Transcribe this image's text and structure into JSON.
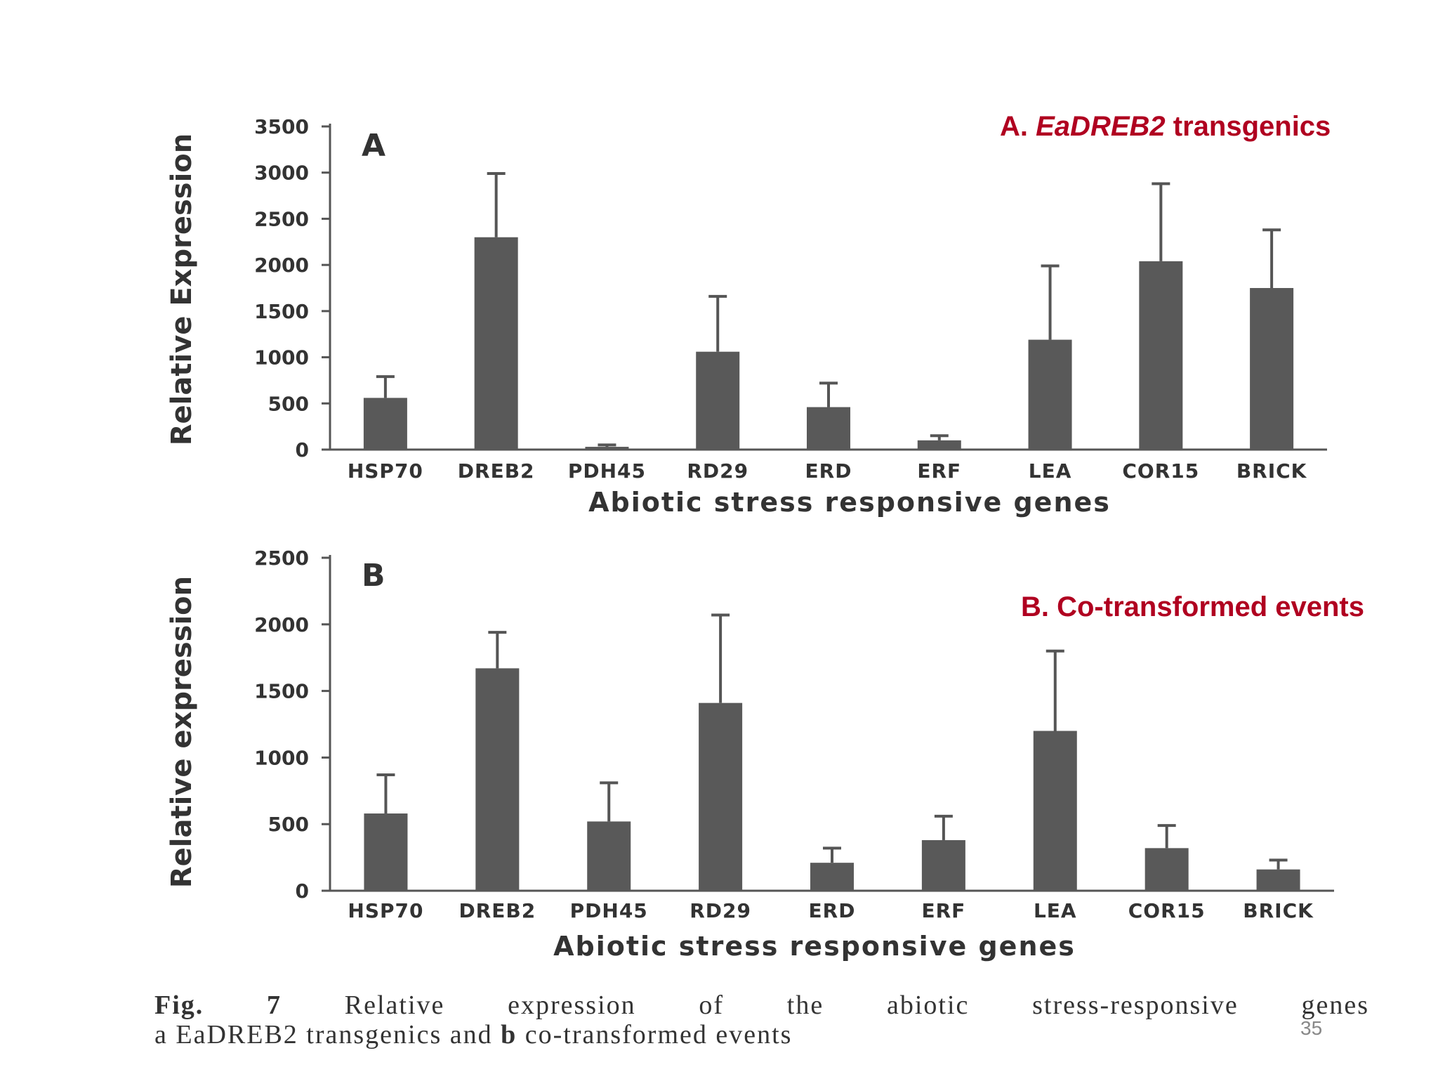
{
  "slide": {
    "page_number": "35"
  },
  "labels": {
    "a_prefix": "A.",
    "a_italic": "EaDREB2",
    "a_suffix": "transgenics",
    "b": "B. Co-transformed events"
  },
  "caption": {
    "fig_label": "Fig. 7",
    "line1_text": "Relative expression of the abiotic stress-responsive genes",
    "line2_a": "a",
    "line2_mid": "EaDREB2 transgenics and",
    "line2_b": "b",
    "line2_end": "co-transformed events"
  },
  "colors": {
    "bar": "#595959",
    "axis": "#555555",
    "text": "#333333",
    "accent": "#b00020"
  },
  "chart_data": [
    {
      "type": "bar",
      "panel_letter": "A",
      "ylabel": "Relative Expression",
      "xlabel": "Abiotic stress responsive genes",
      "categories": [
        "HSP70",
        "DREB2",
        "PDH45",
        "RD29",
        "ERD",
        "ERF",
        "LEA",
        "COR15",
        "BRICK"
      ],
      "values": [
        560,
        2300,
        30,
        1060,
        460,
        100,
        1190,
        2040,
        1750
      ],
      "error_upper": [
        790,
        2990,
        50,
        1660,
        720,
        150,
        1990,
        2880,
        2380
      ],
      "yticks": [
        "0",
        "500",
        "1000",
        "1500",
        "2000",
        "2500",
        "3000",
        "3500"
      ],
      "ylim": [
        0,
        3500
      ],
      "grid": false
    },
    {
      "type": "bar",
      "panel_letter": "B",
      "ylabel": "Relative expression",
      "xlabel": "Abiotic stress responsive genes",
      "categories": [
        "HSP70",
        "DREB2",
        "PDH45",
        "RD29",
        "ERD",
        "ERF",
        "LEA",
        "COR15",
        "BRICK"
      ],
      "values": [
        580,
        1670,
        520,
        1410,
        210,
        380,
        1200,
        320,
        160
      ],
      "error_upper": [
        870,
        1940,
        810,
        2070,
        320,
        560,
        1800,
        490,
        230
      ],
      "yticks": [
        "0",
        "500",
        "1000",
        "1500",
        "2000",
        "2500"
      ],
      "ylim": [
        0,
        2500
      ],
      "grid": false
    }
  ]
}
